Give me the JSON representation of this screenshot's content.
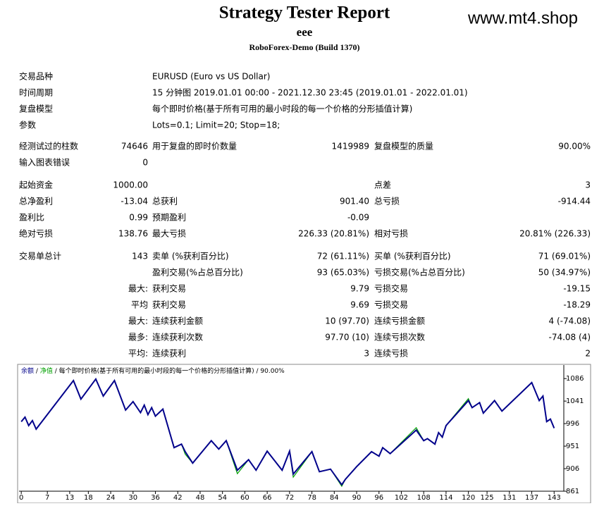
{
  "header": {
    "title": "Strategy Tester Report",
    "expert": "eee",
    "server": "RoboForex-Demo (Build 1370)",
    "watermark": "www.mt4.shop"
  },
  "info": [
    [
      "交易品种",
      "EURUSD (Euro vs US Dollar)"
    ],
    [
      "时间周期",
      "15 分钟图 2019.01.01 00:00 - 2021.12.30 23:45 (2019.01.01 - 2022.01.01)"
    ],
    [
      "复盘模型",
      "每个即时价格(基于所有可用的最小时段的每一个价格的分形插值计算)"
    ],
    [
      "参数",
      "Lots=0.1; Limit=20; Stop=18;"
    ]
  ],
  "groups": [
    [
      {
        "l1": "经测试过的柱数",
        "v1": "74646",
        "l2": "用于复盘的即时价数量",
        "v2": "1419989",
        "l3": "复盘模型的质量",
        "v3": "90.00%"
      },
      {
        "l1": "输入图表错误",
        "v1": "0"
      }
    ],
    [
      {
        "l1": "起始资金",
        "v1": "1000.00",
        "l3": "点差",
        "v3": "3"
      },
      {
        "l1": "总净盈利",
        "v1": "-13.04",
        "l2": "总获利",
        "v2": "901.40",
        "l3": "总亏损",
        "v3": "-914.44"
      },
      {
        "l1": "盈利比",
        "v1": "0.99",
        "l2": "预期盈利",
        "v2": "-0.09"
      },
      {
        "l1": "绝对亏损",
        "v1": "138.76",
        "l2": "最大亏损",
        "v2": "226.33 (20.81%)",
        "l3": "相对亏损",
        "v3": "20.81% (226.33)"
      }
    ],
    [
      {
        "l1": "交易单总计",
        "v1": "143",
        "l2": "卖单 (%获利百分比)",
        "v2": "72 (61.11%)",
        "l3": "买单 (%获利百分比)",
        "v3": "71 (69.01%)"
      },
      {
        "l2": "盈利交易(%占总百分比)",
        "v2": "93 (65.03%)",
        "l3": "亏损交易(%占总百分比)",
        "v3": "50 (34.97%)"
      },
      {
        "v1": "最大:",
        "l2": "获利交易",
        "v2": "9.79",
        "l3": "亏损交易",
        "v3": "-19.15"
      },
      {
        "v1": "平均",
        "l2": "获利交易",
        "v2": "9.69",
        "l3": "亏损交易",
        "v3": "-18.29"
      },
      {
        "v1": "最大:",
        "l2": "连续获利金额",
        "v2": "10 (97.70)",
        "l3": "连续亏损金额",
        "v3": "4 (-74.08)"
      },
      {
        "v1": "最多:",
        "l2": "连续获利次数",
        "v2": "97.70 (10)",
        "l3": "连续亏损次数",
        "v3": "-74.08 (4)"
      },
      {
        "v1": "平均:",
        "l2": "连续获利",
        "v2": "3",
        "l3": "连续亏损",
        "v3": "2"
      }
    ]
  ],
  "chart_data": {
    "type": "line",
    "separator": "/",
    "legend_note": "每个即时价格(基于所有可用的最小时段的每一个价格的分形插值计算) / 90.00%",
    "x": [
      0,
      1,
      2,
      3,
      4,
      14,
      16,
      20,
      22,
      25,
      28,
      30,
      32,
      33,
      34,
      35,
      36,
      38,
      41,
      43,
      44,
      46,
      51,
      53,
      55,
      58,
      61,
      63,
      66,
      70,
      72,
      73,
      78,
      80,
      83,
      86,
      87,
      90,
      94,
      96,
      97,
      99,
      106,
      108,
      109,
      111,
      112,
      113,
      114,
      120,
      121,
      123,
      124,
      127,
      129,
      137,
      139,
      140,
      141,
      142,
      143
    ],
    "series": [
      {
        "name": "余额",
        "color": "#00008b",
        "values": [
          1000,
          1009,
          992,
          1002,
          985,
          1082,
          1045,
          1085,
          1051,
          1082,
          1023,
          1040,
          1018,
          1033,
          1014,
          1028,
          1011,
          1025,
          948,
          955,
          940,
          917,
          962,
          945,
          962,
          903,
          924,
          903,
          941,
          903,
          941,
          895,
          940,
          900,
          905,
          874,
          885,
          910,
          940,
          931,
          948,
          936,
          983,
          962,
          966,
          955,
          978,
          969,
          992,
          1042,
          1028,
          1038,
          1017,
          1042,
          1021,
          1078,
          1042,
          1051,
          1000,
          1005,
          987
        ]
      },
      {
        "name": "净值",
        "color": "#00a000",
        "values": [
          1000,
          1009,
          992,
          1002,
          985,
          1082,
          1045,
          1085,
          1051,
          1082,
          1023,
          1040,
          1018,
          1033,
          1014,
          1028,
          1011,
          1025,
          948,
          955,
          935,
          917,
          962,
          945,
          962,
          896,
          924,
          903,
          941,
          903,
          941,
          889,
          940,
          900,
          905,
          871,
          885,
          910,
          940,
          931,
          948,
          936,
          988,
          962,
          966,
          955,
          978,
          969,
          992,
          1046,
          1028,
          1038,
          1017,
          1042,
          1021,
          1078,
          1042,
          1051,
          1000,
          1005,
          987
        ]
      }
    ],
    "xlim": [
      -0.6,
      145.6
    ],
    "ylim": [
      861,
      1113
    ],
    "xticks": [
      0,
      7,
      13,
      18,
      24,
      30,
      36,
      42,
      48,
      54,
      60,
      66,
      72,
      78,
      84,
      90,
      96,
      102,
      108,
      114,
      120,
      125,
      131,
      137,
      143
    ],
    "yticks": [
      861,
      906,
      951,
      996,
      1041,
      1086
    ]
  }
}
